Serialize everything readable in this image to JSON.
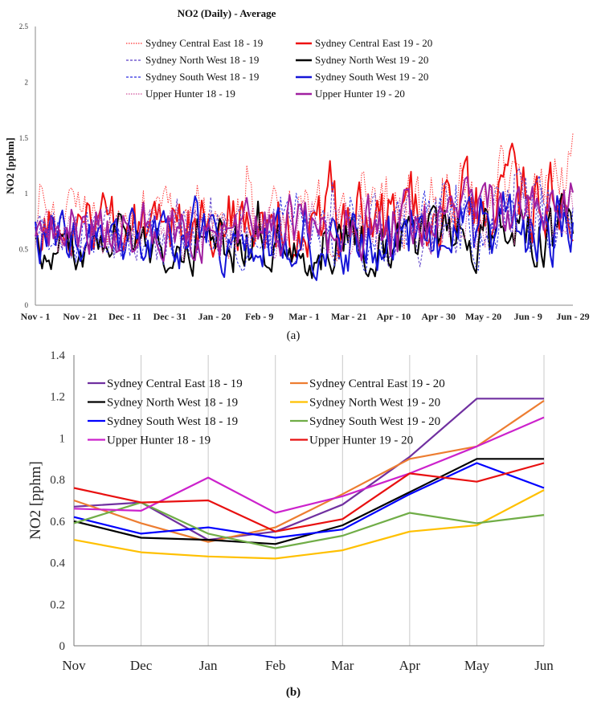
{
  "chart_data": [
    {
      "type": "line",
      "title": "NO2 (Daily) - Average",
      "ylabel": "NO2 [pphm]",
      "xlabel": "",
      "ylim": [
        0,
        2.5
      ],
      "yticks": [
        "0",
        "0.5",
        "1",
        "1.5",
        "2",
        "2.5"
      ],
      "xticks": [
        "Nov - 1",
        "Nov - 21",
        "Dec - 11",
        "Dec - 31",
        "Jan - 20",
        "Feb - 9",
        "Mar - 1",
        "Mar - 21",
        "Apr - 10",
        "Apr - 30",
        "May - 20",
        "Jun - 9",
        "Jun - 29"
      ],
      "panel_label": "(a)",
      "legend": [
        "Sydney Central East 18 - 19",
        "Sydney Central East 19 - 20",
        "Sydney North West 18 - 19",
        "Sydney North West 19 - 20",
        "Sydney South West 18 - 19",
        "Sydney South West 19 - 20",
        "Upper Hunter 18 - 19",
        "Upper Hunter 19 - 20"
      ],
      "series": [
        {
          "name": "Sydney Central East 18 - 19",
          "color": "#ff3030",
          "dash": "dotted",
          "base": 0.78,
          "amp": 0.38,
          "trend": 0.55,
          "seed": 3
        },
        {
          "name": "Sydney Central East 19 - 20",
          "color": "#ee1111",
          "dash": "solid",
          "base": 0.7,
          "amp": 0.4,
          "trend": 0.45,
          "seed": 7
        },
        {
          "name": "Sydney North West 18 - 19",
          "color": "#5a3ec8",
          "dash": "dashed",
          "base": 0.62,
          "amp": 0.33,
          "trend": 0.35,
          "seed": 11
        },
        {
          "name": "Sydney North West 19 - 20",
          "color": "#000000",
          "dash": "solid",
          "base": 0.52,
          "amp": 0.3,
          "trend": 0.25,
          "seed": 13
        },
        {
          "name": "Sydney South West 18 - 19",
          "color": "#2a2ae0",
          "dash": "dashed",
          "base": 0.6,
          "amp": 0.32,
          "trend": 0.3,
          "seed": 17
        },
        {
          "name": "Sydney South West 19 - 20",
          "color": "#1515d8",
          "dash": "solid",
          "base": 0.58,
          "amp": 0.34,
          "trend": 0.22,
          "seed": 19
        },
        {
          "name": "Upper Hunter 18 - 19",
          "color": "#d0509a",
          "dash": "dotted",
          "base": 0.66,
          "amp": 0.32,
          "trend": 0.3,
          "seed": 23
        },
        {
          "name": "Upper Hunter 19 - 20",
          "color": "#a020a0",
          "dash": "solid",
          "base": 0.68,
          "amp": 0.33,
          "trend": 0.25,
          "seed": 29
        }
      ]
    },
    {
      "type": "line",
      "title": "",
      "ylabel": "NO2 [pphm]",
      "xlabel": "",
      "ylim": [
        0,
        1.4
      ],
      "yticks": [
        "0",
        "0.2",
        "0.4",
        "0.6",
        "0.8",
        "1",
        "1.2",
        "1.4"
      ],
      "categories": [
        "Nov",
        "Dec",
        "Jan",
        "Feb",
        "Mar",
        "Apr",
        "May",
        "Jun"
      ],
      "panel_label": "(b)",
      "series": [
        {
          "name": "Sydney Central East 18 - 19",
          "color": "#7030a0",
          "values": [
            0.67,
            0.69,
            0.51,
            0.55,
            0.68,
            0.91,
            1.19,
            1.19
          ]
        },
        {
          "name": "Sydney Central East 19 - 20",
          "color": "#ed7d31",
          "values": [
            0.7,
            0.59,
            0.5,
            0.57,
            0.73,
            0.9,
            0.96,
            1.18
          ]
        },
        {
          "name": "Sydney North West 18 - 19",
          "color": "#000000",
          "values": [
            0.6,
            0.52,
            0.51,
            0.49,
            0.58,
            0.74,
            0.9,
            0.9
          ]
        },
        {
          "name": "Sydney North West 19 - 20",
          "color": "#ffc000",
          "values": [
            0.51,
            0.45,
            0.43,
            0.42,
            0.46,
            0.55,
            0.58,
            0.75
          ]
        },
        {
          "name": "Sydney South West 18 - 19",
          "color": "#0000ff",
          "values": [
            0.62,
            0.54,
            0.57,
            0.52,
            0.56,
            0.73,
            0.88,
            0.76
          ]
        },
        {
          "name": "Sydney South West 19 - 20",
          "color": "#70ad47",
          "values": [
            0.59,
            0.69,
            0.54,
            0.47,
            0.53,
            0.64,
            0.59,
            0.63
          ]
        },
        {
          "name": "Upper Hunter 18 - 19",
          "color": "#cc22cc",
          "values": [
            0.66,
            0.65,
            0.81,
            0.64,
            0.72,
            0.83,
            0.96,
            1.1
          ]
        },
        {
          "name": "Upper Hunter 19 - 20",
          "color": "#e81010",
          "values": [
            0.76,
            0.69,
            0.7,
            0.55,
            0.61,
            0.83,
            0.79,
            0.88
          ]
        }
      ]
    }
  ]
}
